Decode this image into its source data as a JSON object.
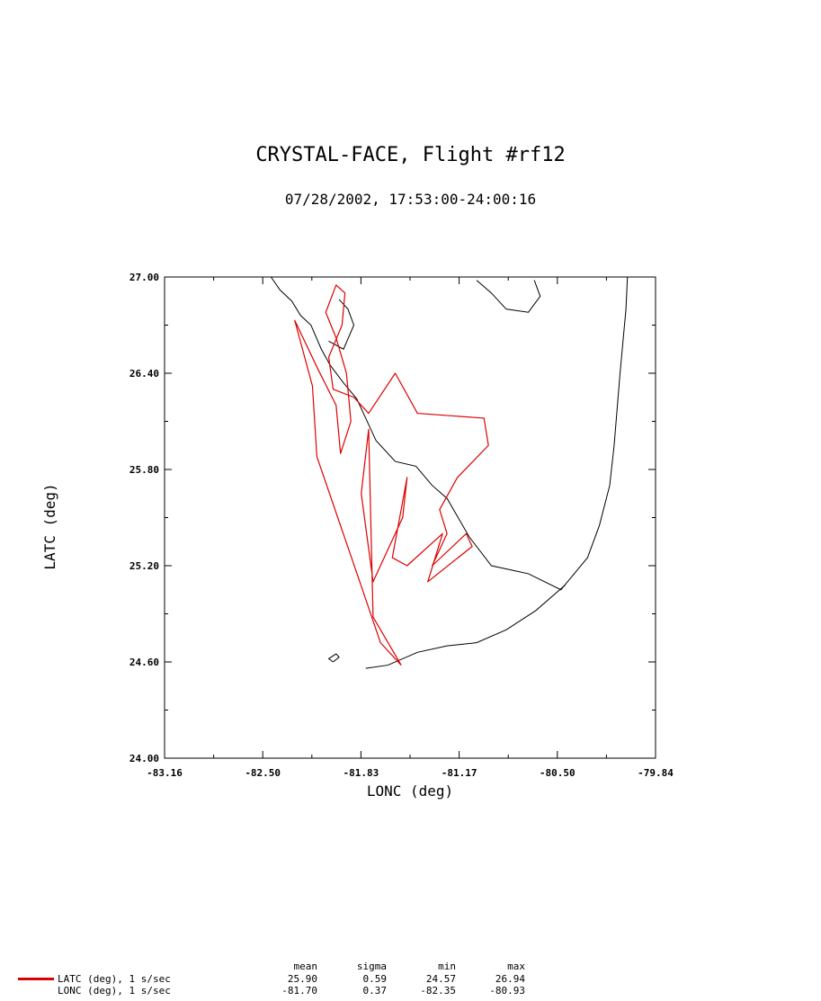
{
  "title": "CRYSTAL-FACE, Flight #rf12",
  "subtitle": "07/28/2002, 17:53:00-24:00:16",
  "chart_data": {
    "type": "line",
    "xlabel": "LONC (deg)",
    "ylabel": "LATC (deg)",
    "xlim": [
      -83.16,
      -79.84
    ],
    "ylim": [
      24.0,
      27.0
    ],
    "x_ticks": [
      "-83.16",
      "-82.50",
      "-81.83",
      "-81.17",
      "-80.50",
      "-79.84"
    ],
    "y_ticks": [
      "24.00",
      "24.60",
      "25.20",
      "25.80",
      "26.40",
      "27.00"
    ],
    "series_color": "#dd0000",
    "coast_color": "#000000",
    "flight_track": [
      [
        -81.56,
        24.58
      ],
      [
        -81.7,
        24.72
      ],
      [
        -81.84,
        25.1
      ],
      [
        -82.13,
        25.88
      ],
      [
        -82.16,
        26.32
      ],
      [
        -82.28,
        26.73
      ],
      [
        -82.12,
        26.42
      ],
      [
        -82.0,
        26.2
      ],
      [
        -81.97,
        25.9
      ],
      [
        -81.9,
        26.1
      ],
      [
        -81.93,
        26.4
      ],
      [
        -82.0,
        26.62
      ],
      [
        -82.07,
        26.78
      ],
      [
        -82.0,
        26.95
      ],
      [
        -81.94,
        26.9
      ],
      [
        -81.96,
        26.7
      ],
      [
        -82.05,
        26.5
      ],
      [
        -82.02,
        26.3
      ],
      [
        -81.88,
        26.25
      ],
      [
        -81.78,
        26.15
      ],
      [
        -81.6,
        26.4
      ],
      [
        -81.45,
        26.15
      ],
      [
        -81.0,
        26.12
      ],
      [
        -80.97,
        25.95
      ],
      [
        -81.18,
        25.75
      ],
      [
        -81.3,
        25.55
      ],
      [
        -81.25,
        25.4
      ],
      [
        -81.35,
        25.2
      ],
      [
        -81.12,
        25.4
      ],
      [
        -81.08,
        25.32
      ],
      [
        -81.38,
        25.1
      ],
      [
        -81.28,
        25.4
      ],
      [
        -81.52,
        25.2
      ],
      [
        -81.62,
        25.25
      ],
      [
        -81.52,
        25.75
      ],
      [
        -81.55,
        25.5
      ],
      [
        -81.75,
        25.1
      ],
      [
        -81.83,
        25.65
      ],
      [
        -81.78,
        26.05
      ],
      [
        -81.75,
        24.88
      ],
      [
        -81.56,
        24.58
      ]
    ],
    "legend_label": "LATC (deg), 1 s/sec",
    "legend_label_2": "LONC (deg), 1 s/sec",
    "stats_headers": [
      "mean",
      "sigma",
      "min",
      "max"
    ],
    "stats": [
      {
        "name": "LATC (deg), 1 s/sec",
        "mean": "25.90",
        "sigma": "0.59",
        "min": "24.57",
        "max": "26.94"
      },
      {
        "name": "LONC (deg), 1 s/sec",
        "mean": "-81.70",
        "sigma": "0.37",
        "min": "-82.35",
        "max": "-80.93"
      }
    ]
  }
}
